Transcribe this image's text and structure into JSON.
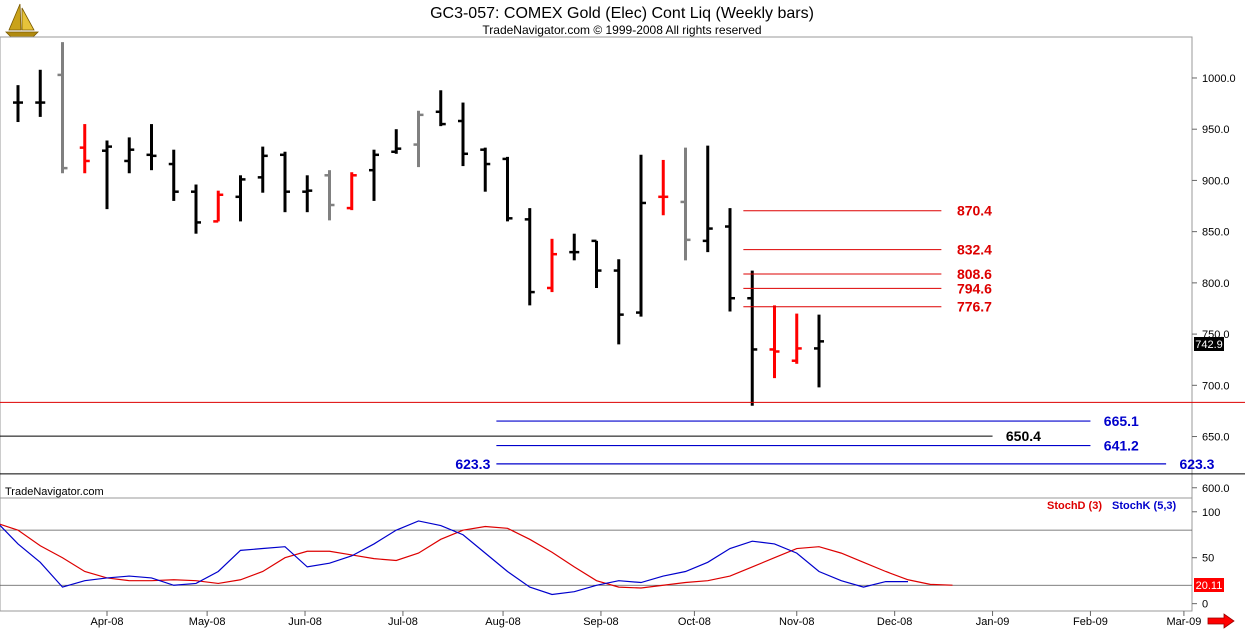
{
  "header": {
    "title": "GC3-057:  COMEX Gold (Elec) Cont Liq  (Weekly bars)",
    "copyright": "TradeNavigator.com © 1999-2008 All rights reserved",
    "watermark": "TradeNavigator.com"
  },
  "colors": {
    "background": "#ffffff",
    "up_bar": "#000000",
    "down_bar": "#ff0000",
    "neutral_bar": "#808080",
    "red_level": "#dd0000",
    "blue_level": "#0000cc",
    "black_level": "#000000",
    "stoch_d": "#dd0000",
    "stoch_k": "#0000cc"
  },
  "icons": {
    "logo": "sailboat-logo-icon",
    "next": "red-arrow-right-icon"
  },
  "chart_data": [
    {
      "type": "ohlc",
      "panel": "price",
      "ylim": [
        590,
        1040
      ],
      "yticks": [
        "1000.0",
        "950.0",
        "900.0",
        "850.0",
        "800.0",
        "750.0",
        "700.0",
        "650.0",
        "600.0"
      ],
      "ytick_values": [
        1000,
        950,
        900,
        850,
        800,
        750,
        700,
        650,
        600
      ],
      "current_price": "742.9",
      "x_labels": [
        "Apr-08",
        "May-08",
        "Jun-08",
        "Jul-08",
        "Aug-08",
        "Sep-08",
        "Oct-08",
        "Nov-08",
        "Dec-08",
        "Jan-09",
        "Feb-09",
        "Mar-09"
      ],
      "x_label_weeks": [
        4,
        8.5,
        12.9,
        17.3,
        21.8,
        26.2,
        30.4,
        35,
        39.4,
        43.8,
        48.2,
        52.4
      ],
      "bars": [
        {
          "o": 976,
          "h": 993,
          "l": 957,
          "c": 976,
          "color": "black"
        },
        {
          "o": 976,
          "h": 1008,
          "l": 962,
          "c": 976,
          "color": "black"
        },
        {
          "o": 1003,
          "h": 1035,
          "l": 907,
          "c": 912,
          "color": "grey"
        },
        {
          "o": 932,
          "h": 955,
          "l": 907,
          "c": 919,
          "color": "red"
        },
        {
          "o": 929,
          "h": 939,
          "l": 872,
          "c": 933,
          "color": "black"
        },
        {
          "o": 919,
          "h": 942,
          "l": 907,
          "c": 930,
          "color": "black"
        },
        {
          "o": 925,
          "h": 955,
          "l": 910,
          "c": 924,
          "color": "black"
        },
        {
          "o": 916,
          "h": 930,
          "l": 880,
          "c": 889,
          "color": "black"
        },
        {
          "o": 889,
          "h": 896,
          "l": 848,
          "c": 859,
          "color": "black"
        },
        {
          "o": 860,
          "h": 890,
          "l": 860,
          "c": 886,
          "color": "red"
        },
        {
          "o": 884,
          "h": 905,
          "l": 860,
          "c": 901,
          "color": "black"
        },
        {
          "o": 903,
          "h": 933,
          "l": 888,
          "c": 924,
          "color": "black"
        },
        {
          "o": 925,
          "h": 928,
          "l": 869,
          "c": 889,
          "color": "black"
        },
        {
          "o": 889,
          "h": 905,
          "l": 869,
          "c": 890,
          "color": "black"
        },
        {
          "o": 905,
          "h": 910,
          "l": 861,
          "c": 876,
          "color": "grey"
        },
        {
          "o": 873,
          "h": 908,
          "l": 871,
          "c": 905,
          "color": "red"
        },
        {
          "o": 910,
          "h": 930,
          "l": 880,
          "c": 925,
          "color": "black"
        },
        {
          "o": 928,
          "h": 950,
          "l": 926,
          "c": 931,
          "color": "black"
        },
        {
          "o": 935,
          "h": 968,
          "l": 913,
          "c": 964,
          "color": "grey"
        },
        {
          "o": 967,
          "h": 988,
          "l": 953,
          "c": 955,
          "color": "black"
        },
        {
          "o": 958,
          "h": 976,
          "l": 914,
          "c": 926,
          "color": "black"
        },
        {
          "o": 930,
          "h": 932,
          "l": 889,
          "c": 916,
          "color": "black"
        },
        {
          "o": 921,
          "h": 923,
          "l": 860,
          "c": 863,
          "color": "black"
        },
        {
          "o": 862,
          "h": 873,
          "l": 778,
          "c": 791,
          "color": "black"
        },
        {
          "o": 795,
          "h": 843,
          "l": 791,
          "c": 828,
          "color": "red"
        },
        {
          "o": 830,
          "h": 848,
          "l": 822,
          "c": 830,
          "color": "black"
        },
        {
          "o": 841,
          "h": 841,
          "l": 795,
          "c": 812,
          "color": "black"
        },
        {
          "o": 812,
          "h": 823,
          "l": 740,
          "c": 769,
          "color": "black"
        },
        {
          "o": 771,
          "h": 925,
          "l": 767,
          "c": 878,
          "color": "black"
        },
        {
          "o": 884,
          "h": 920,
          "l": 866,
          "c": 884,
          "color": "red"
        },
        {
          "o": 879,
          "h": 932,
          "l": 822,
          "c": 842,
          "color": "grey"
        },
        {
          "o": 841,
          "h": 934,
          "l": 830,
          "c": 853,
          "color": "black"
        },
        {
          "o": 855,
          "h": 873,
          "l": 772,
          "c": 785,
          "color": "black"
        },
        {
          "o": 785,
          "h": 812,
          "l": 680,
          "c": 735,
          "color": "black"
        },
        {
          "o": 735,
          "h": 778,
          "l": 707,
          "c": 733,
          "color": "red"
        },
        {
          "o": 724,
          "h": 770,
          "l": 721,
          "c": 736,
          "color": "red"
        },
        {
          "o": 736,
          "h": 769,
          "l": 698,
          "c": 742.9,
          "color": "black"
        }
      ],
      "levels": [
        {
          "value": 870.4,
          "label": "870.4",
          "color": "red",
          "x_from_week": 32.6,
          "x_to_week": 41.5,
          "label_week": 42.2
        },
        {
          "value": 832.4,
          "label": "832.4",
          "color": "red",
          "x_from_week": 32.6,
          "x_to_week": 41.5,
          "label_week": 42.2
        },
        {
          "value": 808.6,
          "label": "808.6",
          "color": "red",
          "x_from_week": 32.6,
          "x_to_week": 41.5,
          "label_week": 42.2
        },
        {
          "value": 794.6,
          "label": "794.6",
          "color": "red",
          "x_from_week": 32.6,
          "x_to_week": 41.5,
          "label_week": 42.2
        },
        {
          "value": 776.7,
          "label": "776.7",
          "color": "red",
          "x_from_week": 32.6,
          "x_to_week": 41.5,
          "label_week": 42.2
        },
        {
          "value": 683.4,
          "label": "683.4",
          "color": "red",
          "x_from_week": -0.9,
          "x_to_week": 55.8,
          "label_week": 56.4
        },
        {
          "value": 665.1,
          "label": "665.1",
          "color": "blue",
          "x_from_week": 21.5,
          "x_to_week": 48.2,
          "label_week": 48.8
        },
        {
          "value": 650.4,
          "label": "650.4",
          "color": "black",
          "x_from_week": -0.9,
          "x_to_week": 43.8,
          "label_week": 44.4
        },
        {
          "value": 641.2,
          "label": "641.2",
          "color": "blue",
          "x_from_week": 21.5,
          "x_to_week": 48.2,
          "label_week": 48.8
        },
        {
          "value": 623.3,
          "label": "623.3",
          "color": "blue",
          "x_from_week": 21.5,
          "x_to_week": 51.6,
          "label_week": 52.2,
          "left_label": "623.3"
        },
        {
          "value": 613.5,
          "label": "613.5",
          "color": "black",
          "x_from_week": -0.9,
          "x_to_week": 55.8,
          "label_week": 56.4
        }
      ]
    },
    {
      "type": "line",
      "panel": "stochastic",
      "ylim": [
        -8,
        115
      ],
      "yticks": [
        "100",
        "50",
        "0"
      ],
      "ytick_values": [
        100,
        50,
        0
      ],
      "reference_lines": [
        80,
        20
      ],
      "current_value": "20.11",
      "series": [
        {
          "name": "StochD (3)",
          "color": "red",
          "values": [
            85,
            88,
            80,
            63,
            50,
            35,
            28,
            25,
            25,
            26,
            25,
            22,
            26,
            35,
            50,
            57,
            57,
            53,
            49,
            47,
            55,
            70,
            80,
            84,
            82,
            70,
            56,
            40,
            25,
            18,
            17,
            20,
            23,
            25,
            30,
            40,
            50,
            60,
            62,
            55,
            45,
            35,
            26,
            21,
            20.11
          ]
        },
        {
          "name": "StochK (5,3)",
          "color": "blue",
          "values": [
            90,
            90,
            65,
            45,
            18,
            25,
            28,
            30,
            28,
            20,
            22,
            35,
            58,
            60,
            62,
            40,
            44,
            52,
            65,
            80,
            90,
            85,
            75,
            55,
            35,
            18,
            10,
            13,
            20,
            25,
            23,
            30,
            35,
            45,
            60,
            68,
            65,
            55,
            35,
            25,
            18,
            24,
            24
          ]
        }
      ]
    }
  ]
}
